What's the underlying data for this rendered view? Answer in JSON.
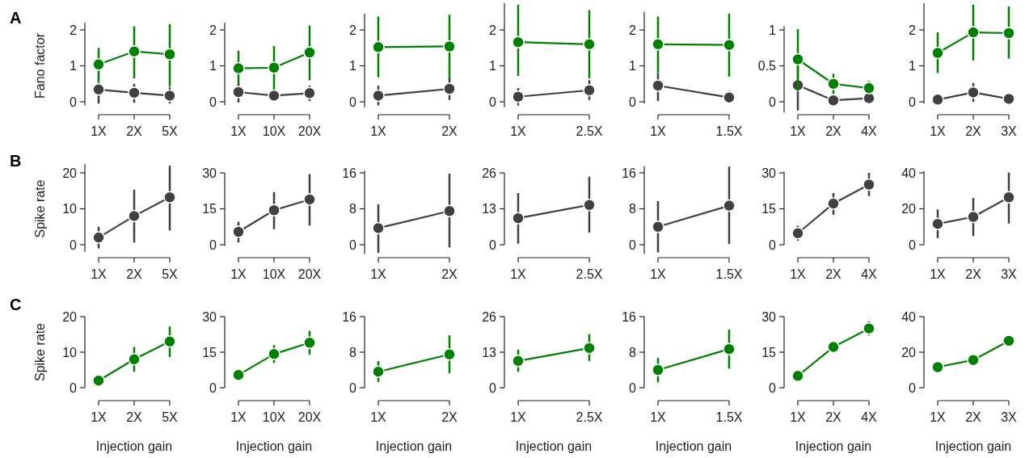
{
  "chart_data": [
    {
      "type": "line",
      "annotations": [
        "A"
      ],
      "ylabel": "Fano factor",
      "categories": [
        "1X",
        "2X",
        "5X"
      ],
      "ylim": [
        -0.1,
        2.2
      ],
      "yticks": [
        0,
        1,
        2
      ],
      "marker": "circle",
      "series": [
        {
          "color": "#008000",
          "values": [
            1.04,
            1.4,
            1.32
          ],
          "errors": [
            [
              0.56,
              1.5
            ],
            [
              0.65,
              2.1
            ],
            [
              0.42,
              2.16
            ]
          ]
        },
        {
          "color": "#404040",
          "values": [
            0.34,
            0.25,
            0.17
          ],
          "errors": [
            [
              -0.05,
              0.55
            ],
            [
              -0.03,
              0.5
            ],
            [
              -0.05,
              0.4
            ]
          ]
        }
      ]
    },
    {
      "type": "line",
      "categories": [
        "1X",
        "10X",
        "20X"
      ],
      "ylim": [
        -0.1,
        2.2
      ],
      "yticks": [
        0,
        1,
        2
      ],
      "marker": "circle",
      "series": [
        {
          "color": "#008000",
          "values": [
            0.93,
            0.95,
            1.37
          ],
          "errors": [
            [
              0.45,
              1.42
            ],
            [
              0.25,
              1.55
            ],
            [
              0.6,
              2.12
            ]
          ]
        },
        {
          "color": "#404040",
          "values": [
            0.27,
            0.17,
            0.24
          ],
          "errors": [
            [
              -0.02,
              0.5
            ],
            [
              0,
              0.3
            ],
            [
              0.02,
              0.45
            ]
          ]
        }
      ]
    },
    {
      "type": "line",
      "categories": [
        "1X",
        "2X"
      ],
      "ylim": [
        -0.15,
        2.45
      ],
      "yticks": [
        0,
        1,
        2
      ],
      "marker": "circle",
      "series": [
        {
          "color": "#008000",
          "values": [
            1.52,
            1.54
          ],
          "errors": [
            [
              0.68,
              2.37
            ],
            [
              0.6,
              2.42
            ]
          ]
        },
        {
          "color": "#404040",
          "values": [
            0.17,
            0.36
          ],
          "errors": [
            [
              -0.1,
              0.45
            ],
            [
              0.05,
              0.65
            ]
          ]
        }
      ]
    },
    {
      "type": "line",
      "categories": [
        "1X",
        "2.5X"
      ],
      "ylim": [
        -0.15,
        2.75
      ],
      "yticks": [
        0,
        1,
        2
      ],
      "marker": "circle",
      "series": [
        {
          "color": "#008000",
          "values": [
            1.66,
            1.6
          ],
          "errors": [
            [
              0.72,
              2.7
            ],
            [
              0.65,
              2.55
            ]
          ]
        },
        {
          "color": "#404040",
          "values": [
            0.14,
            0.32
          ],
          "errors": [
            [
              -0.1,
              0.38
            ],
            [
              0.05,
              0.6
            ]
          ]
        }
      ]
    },
    {
      "type": "line",
      "categories": [
        "1X",
        "1.5X"
      ],
      "ylim": [
        -0.05,
        2.5
      ],
      "yticks": [
        0,
        1,
        2
      ],
      "marker": "circle",
      "series": [
        {
          "color": "#008000",
          "values": [
            1.6,
            1.58
          ],
          "errors": [
            [
              0.8,
              2.37
            ],
            [
              0.7,
              2.45
            ]
          ]
        },
        {
          "color": "#404040",
          "values": [
            0.45,
            0.12
          ],
          "errors": [
            [
              0.02,
              0.8
            ],
            [
              0,
              0.3
            ]
          ]
        }
      ]
    },
    {
      "type": "line",
      "categories": [
        "1X",
        "2X",
        "4X"
      ],
      "ylim": [
        -0.15,
        1.05
      ],
      "yticks": [
        0,
        0.5,
        1
      ],
      "marker": "circle",
      "series": [
        {
          "color": "#404040",
          "values": [
            0.23,
            0.02,
            0.05
          ],
          "errors": [
            [
              -0.12,
              0.5
            ],
            null,
            null
          ]
        },
        {
          "color": "#008000",
          "values": [
            0.59,
            0.25,
            0.19
          ],
          "errors": [
            [
              0.15,
              1.01
            ],
            [
              0.11,
              0.39
            ],
            [
              0.14,
              0.29
            ]
          ]
        }
      ]
    },
    {
      "type": "line",
      "categories": [
        "1X",
        "2X",
        "3X"
      ],
      "ylim": [
        -0.05,
        2.75
      ],
      "yticks": [
        0,
        1,
        2
      ],
      "marker": "circle",
      "series": [
        {
          "color": "#008000",
          "values": [
            1.36,
            1.93,
            1.91
          ],
          "errors": [
            [
              0.8,
              1.93
            ],
            [
              1.15,
              2.7
            ],
            [
              1.2,
              2.65
            ]
          ]
        },
        {
          "color": "#404040",
          "values": [
            0.06,
            0.26,
            0.08
          ],
          "errors": [
            null,
            [
              0,
              0.52
            ],
            null
          ]
        }
      ]
    },
    {
      "type": "line",
      "annotations": [
        "B"
      ],
      "ylabel": "Spike rate",
      "categories": [
        "1X",
        "2X",
        "5X"
      ],
      "ylim": [
        -2,
        22.5
      ],
      "yticks": [
        0,
        10,
        20
      ],
      "marker": "circle",
      "series": [
        {
          "color": "#404040",
          "values": [
            2,
            8,
            13.2
          ],
          "errors": [
            [
              -1,
              5
            ],
            [
              0.6,
              15.3
            ],
            [
              4,
              22
            ]
          ]
        }
      ]
    },
    {
      "type": "line",
      "categories": [
        "1X",
        "10X",
        "20X"
      ],
      "ylim": [
        -0.5,
        30
      ],
      "yticks": [
        0,
        15,
        30
      ],
      "marker": "circle",
      "series": [
        {
          "color": "#404040",
          "values": [
            5.4,
            14.4,
            18.9
          ],
          "errors": [
            [
              1,
              9.6
            ],
            [
              6.5,
              22
            ],
            [
              8,
              29.5
            ]
          ]
        }
      ]
    },
    {
      "type": "line",
      "categories": [
        "1X",
        "2X"
      ],
      "ylim": [
        -2,
        16.5
      ],
      "yticks": [
        0,
        8,
        16
      ],
      "marker": "circle",
      "series": [
        {
          "color": "#404040",
          "values": [
            3.7,
            7.5
          ],
          "errors": [
            [
              -1.8,
              9
            ],
            [
              -0.6,
              15.8
            ]
          ]
        }
      ]
    },
    {
      "type": "line",
      "categories": [
        "1X",
        "2.5X"
      ],
      "ylim": [
        0,
        26
      ],
      "yticks": [
        0,
        13,
        26
      ],
      "marker": "circle",
      "series": [
        {
          "color": "#404040",
          "values": [
            9.6,
            14.4
          ],
          "errors": [
            [
              0.4,
              18.7
            ],
            [
              4.4,
              24.6
            ]
          ]
        }
      ]
    },
    {
      "type": "line",
      "categories": [
        "1X",
        "1.5X"
      ],
      "ylim": [
        -2,
        17.5
      ],
      "yticks": [
        0,
        8,
        16
      ],
      "marker": "circle",
      "series": [
        {
          "color": "#404040",
          "values": [
            4,
            8.7
          ],
          "errors": [
            [
              -1.7,
              9.7
            ],
            [
              0.2,
              17.4
            ]
          ]
        }
      ]
    },
    {
      "type": "line",
      "categories": [
        "1X",
        "2X",
        "4X"
      ],
      "ylim": [
        0,
        30.5
      ],
      "yticks": [
        0,
        15,
        30
      ],
      "marker": "circle",
      "series": [
        {
          "color": "#404040",
          "values": [
            4.8,
            17.2,
            25.1
          ],
          "errors": [
            [
              1.7,
              8
            ],
            [
              12.5,
              21.6
            ],
            [
              20.3,
              30
            ]
          ]
        }
      ]
    },
    {
      "type": "line",
      "categories": [
        "1X",
        "2X",
        "3X"
      ],
      "ylim": [
        0,
        41
      ],
      "yticks": [
        0,
        20,
        40
      ],
      "marker": "circle",
      "series": [
        {
          "color": "#404040",
          "values": [
            11.6,
            15.5,
            26.4
          ],
          "errors": [
            [
              3.7,
              19.6
            ],
            [
              4.9,
              26
            ],
            [
              11.8,
              40.2
            ]
          ]
        }
      ]
    },
    {
      "type": "line",
      "annotations": [
        "C"
      ],
      "ylabel": "Spike rate",
      "xlabel": "Injection gain",
      "categories": [
        "1X",
        "2X",
        "5X"
      ],
      "ylim": [
        0,
        20
      ],
      "yticks": [
        0,
        10,
        20
      ],
      "marker": "circle",
      "series": [
        {
          "color": "#008000",
          "values": [
            2,
            8,
            13
          ],
          "errors": [
            null,
            [
              4.5,
              11.5
            ],
            [
              8.6,
              17.2
            ]
          ]
        }
      ]
    },
    {
      "type": "line",
      "xlabel": "Injection gain",
      "categories": [
        "1X",
        "10X",
        "20X"
      ],
      "ylim": [
        0,
        30
      ],
      "yticks": [
        0,
        15,
        30
      ],
      "marker": "circle",
      "series": [
        {
          "color": "#008000",
          "values": [
            5.4,
            14.2,
            19
          ],
          "errors": [
            null,
            [
              10.5,
              18
            ],
            [
              14,
              24
            ]
          ]
        }
      ]
    },
    {
      "type": "line",
      "xlabel": "Injection gain",
      "categories": [
        "1X",
        "2X"
      ],
      "ylim": [
        0,
        16
      ],
      "yticks": [
        0,
        8,
        16
      ],
      "marker": "circle",
      "series": [
        {
          "color": "#008000",
          "values": [
            3.6,
            7.5
          ],
          "errors": [
            [
              1.3,
              6
            ],
            [
              3.3,
              11.8
            ]
          ]
        }
      ]
    },
    {
      "type": "line",
      "xlabel": "Injection gain",
      "categories": [
        "1X",
        "2.5X"
      ],
      "ylim": [
        0,
        26
      ],
      "yticks": [
        0,
        13,
        26
      ],
      "marker": "circle",
      "series": [
        {
          "color": "#008000",
          "values": [
            9.8,
            14.5
          ],
          "errors": [
            [
              5.8,
              13.9
            ],
            [
              9.8,
              19.6
            ]
          ]
        }
      ]
    },
    {
      "type": "line",
      "xlabel": "Injection gain",
      "categories": [
        "1X",
        "1.5X"
      ],
      "ylim": [
        0,
        16
      ],
      "yticks": [
        0,
        8,
        16
      ],
      "marker": "circle",
      "series": [
        {
          "color": "#008000",
          "values": [
            4,
            8.7
          ],
          "errors": [
            [
              1.2,
              6.7
            ],
            [
              4.3,
              13.1
            ]
          ]
        }
      ]
    },
    {
      "type": "line",
      "xlabel": "Injection gain",
      "categories": [
        "1X",
        "2X",
        "4X"
      ],
      "ylim": [
        0,
        30
      ],
      "yticks": [
        0,
        15,
        30
      ],
      "marker": "circle",
      "series": [
        {
          "color": "#008000",
          "values": [
            5,
            17.2,
            25
          ],
          "errors": [
            null,
            null,
            [
              22,
              28
            ]
          ]
        }
      ]
    },
    {
      "type": "line",
      "xlabel": "Injection gain",
      "categories": [
        "1X",
        "2X",
        "3X"
      ],
      "ylim": [
        0,
        40
      ],
      "yticks": [
        0,
        20,
        40
      ],
      "marker": "circle",
      "series": [
        {
          "color": "#008000",
          "values": [
            11.6,
            15.6,
            26.4
          ]
        }
      ]
    }
  ]
}
